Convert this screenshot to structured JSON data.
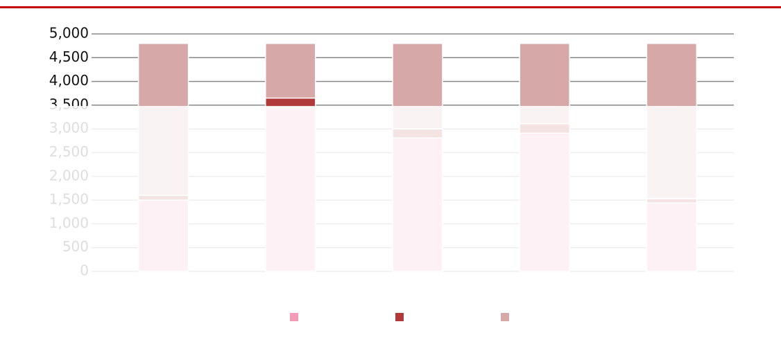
{
  "chart_data": {
    "type": "stacked_bar",
    "categories": [
      null,
      null,
      null,
      null,
      null
    ],
    "series": [
      {
        "name": null,
        "color": "#f29ab6",
        "values": [
          1500,
          3450,
          2810,
          2910,
          1440
        ]
      },
      {
        "name": null,
        "color": "#b03a3a",
        "values": [
          100,
          200,
          190,
          200,
          90
        ]
      },
      {
        "name": null,
        "color": "#d6a8a8",
        "values": [
          3200,
          1150,
          1800,
          1690,
          3270
        ]
      }
    ],
    "ylim": [
      0,
      5000
    ],
    "yticks": [
      0,
      500,
      {
        "value": 1000,
        "label": "1,000"
      },
      {
        "value": 1500,
        "label": "1,500"
      },
      {
        "value": 2000,
        "label": "2,000"
      },
      {
        "value": 2500,
        "label": "2,500"
      },
      {
        "value": 3000,
        "label": "3,000"
      },
      {
        "value": 3500,
        "label": "3,500"
      },
      {
        "value": 4000,
        "label": "4,000"
      },
      {
        "value": 4500,
        "label": "4,500"
      },
      {
        "value": 5000,
        "label": "5,000"
      }
    ],
    "grid": true
  }
}
